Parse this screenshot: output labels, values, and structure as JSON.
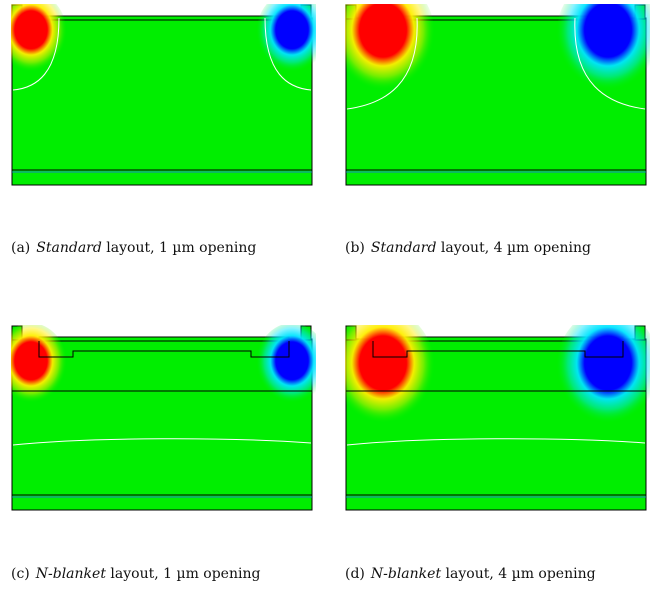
{
  "figure": {
    "panels": [
      {
        "id": "a",
        "label": "(a)",
        "layout": "Standard",
        "rest": "layout, 1 µm opening",
        "variant": "standard",
        "opening": "small"
      },
      {
        "id": "b",
        "label": "(b)",
        "layout": "Standard",
        "rest": "layout, 4 µm opening",
        "variant": "standard",
        "opening": "large"
      },
      {
        "id": "c",
        "label": "(c)",
        "layout": "N-blanket",
        "rest": "layout, 1 µm opening",
        "variant": "nblanket",
        "opening": "small"
      },
      {
        "id": "d",
        "label": "(d)",
        "layout": "N-blanket",
        "rest": "layout, 4 µm opening",
        "variant": "nblanket",
        "opening": "large"
      }
    ],
    "colors": {
      "background_field": "#00ee00",
      "positive": "#ff0000",
      "negative": "#0000ff",
      "outline": "#000000",
      "contour": "#ffffff"
    }
  }
}
